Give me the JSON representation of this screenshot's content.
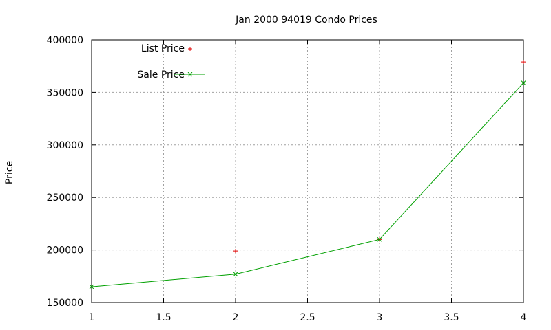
{
  "chart_data": {
    "type": "line",
    "title": "Jan 2000 94019 Condo Prices",
    "xlabel": "",
    "ylabel": "Price",
    "xlim": [
      1,
      4
    ],
    "ylim": [
      150000,
      400000
    ],
    "x_ticks": [
      1,
      1.5,
      2,
      2.5,
      3,
      3.5,
      4
    ],
    "x_tick_labels": [
      "1",
      "1.5",
      "2",
      "2.5",
      "3",
      "3.5",
      "4"
    ],
    "y_ticks": [
      150000,
      200000,
      250000,
      300000,
      350000,
      400000
    ],
    "y_tick_labels": [
      "150000",
      "200000",
      "250000",
      "300000",
      "350000",
      "400000"
    ],
    "grid": true,
    "legend_position": "top-left",
    "series": [
      {
        "name": "List Price",
        "style": "points",
        "marker": "plus",
        "color": "#e00000",
        "x": [
          2,
          3,
          4
        ],
        "y": [
          199000,
          210000,
          379000
        ]
      },
      {
        "name": "Sale Price",
        "style": "linespoints",
        "marker": "cross",
        "color": "#00a000",
        "x": [
          1,
          2,
          3,
          4
        ],
        "y": [
          165000,
          177000,
          210000,
          359000
        ]
      }
    ]
  }
}
